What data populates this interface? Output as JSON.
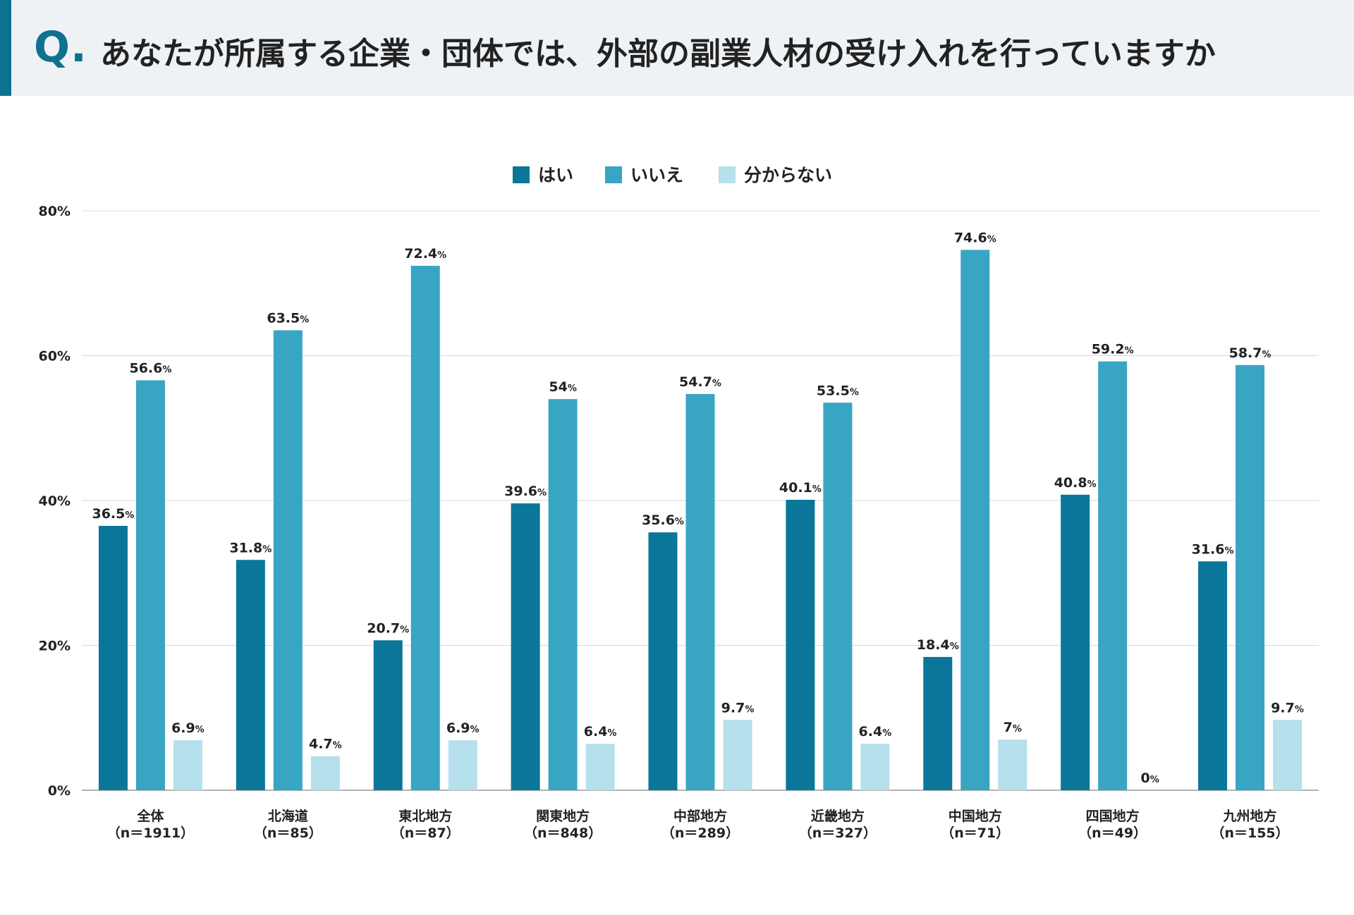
{
  "header": {
    "q_mark": "Q.",
    "question": "あなたが所属する企業・団体では、外部の副業人材の受け入れを行っていますか"
  },
  "colors": {
    "series": [
      "#0a7699",
      "#38a5c3",
      "#b5e0ec"
    ],
    "grid": "#d9d9d9",
    "axis": "#b3b3b3"
  },
  "chart_data": {
    "type": "bar",
    "categories": [
      "全体",
      "北海道",
      "東北地方",
      "関東地方",
      "中部地方",
      "近畿地方",
      "中国地方",
      "四国地方",
      "九州地方"
    ],
    "category_sublabels": [
      "（n＝1911）",
      "（n＝85）",
      "（n＝87）",
      "（n＝848）",
      "（n＝289）",
      "（n＝327）",
      "（n＝71）",
      "（n＝49）",
      "（n＝155）"
    ],
    "series": [
      {
        "name": "はい",
        "values": [
          36.5,
          31.8,
          20.7,
          39.6,
          35.6,
          40.1,
          18.4,
          40.8,
          31.6
        ]
      },
      {
        "name": "いいえ",
        "values": [
          56.6,
          63.5,
          72.4,
          54,
          54.7,
          53.5,
          74.6,
          59.2,
          58.7
        ]
      },
      {
        "name": "分からない",
        "values": [
          6.9,
          4.7,
          6.9,
          6.4,
          9.7,
          6.4,
          7,
          0,
          9.7
        ]
      }
    ],
    "ylim": [
      0,
      80
    ],
    "yticks": [
      0,
      20,
      40,
      60,
      80
    ],
    "ytick_labels": [
      "0%",
      "20%",
      "40%",
      "60%",
      "80%"
    ],
    "value_unit": "%",
    "legend_position": "top-center",
    "grid": true
  }
}
